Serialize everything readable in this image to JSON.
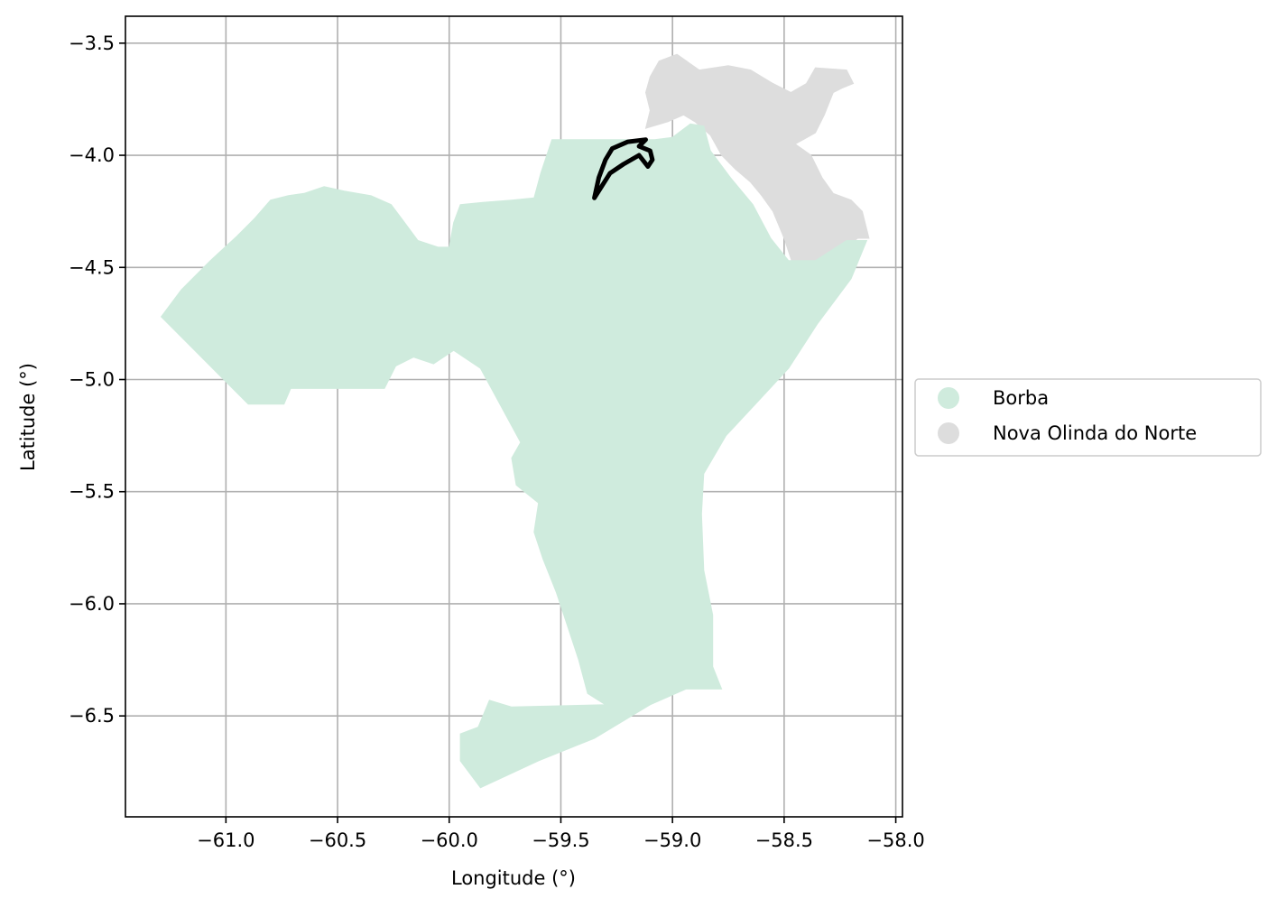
{
  "chart_data": {
    "type": "map",
    "xlabel": "Longitude (°)",
    "ylabel": "Latitude (°)",
    "xlim": [
      -61.45,
      -57.97
    ],
    "ylim": [
      -6.95,
      -3.38
    ],
    "grid": true,
    "legend_placement": "center-right-outside",
    "x_ticks": [
      {
        "value": -61.0,
        "label": "−61.0"
      },
      {
        "value": -60.5,
        "label": "−60.5"
      },
      {
        "value": -60.0,
        "label": "−60.0"
      },
      {
        "value": -59.5,
        "label": "−59.5"
      },
      {
        "value": -59.0,
        "label": "−59.0"
      },
      {
        "value": -58.5,
        "label": "−58.5"
      },
      {
        "value": -58.0,
        "label": "−58.0"
      }
    ],
    "y_ticks": [
      {
        "value": -3.5,
        "label": "−3.5"
      },
      {
        "value": -4.0,
        "label": "−4.0"
      },
      {
        "value": -4.5,
        "label": "−4.5"
      },
      {
        "value": -5.0,
        "label": "−5.0"
      },
      {
        "value": -5.5,
        "label": "−5.5"
      },
      {
        "value": -6.0,
        "label": "−6.0"
      },
      {
        "value": -6.5,
        "label": "−6.5"
      }
    ],
    "regions": [
      {
        "name": "Nova Olinda do Norte",
        "color": "#dddddd",
        "polygon": [
          [
            -59.12,
            -3.88
          ],
          [
            -59.02,
            -3.85
          ],
          [
            -58.95,
            -3.82
          ],
          [
            -58.9,
            -3.85
          ],
          [
            -58.83,
            -3.91
          ],
          [
            -58.78,
            -4.0
          ],
          [
            -58.72,
            -4.06
          ],
          [
            -58.65,
            -4.12
          ],
          [
            -58.6,
            -4.18
          ],
          [
            -58.55,
            -4.25
          ],
          [
            -58.5,
            -4.37
          ],
          [
            -58.46,
            -4.49
          ],
          [
            -58.36,
            -4.48
          ],
          [
            -58.24,
            -4.42
          ],
          [
            -58.17,
            -4.37
          ],
          [
            -58.12,
            -4.37
          ],
          [
            -58.15,
            -4.25
          ],
          [
            -58.2,
            -4.2
          ],
          [
            -58.28,
            -4.17
          ],
          [
            -58.33,
            -4.1
          ],
          [
            -58.38,
            -4.0
          ],
          [
            -58.45,
            -3.95
          ],
          [
            -58.36,
            -3.9
          ],
          [
            -58.32,
            -3.82
          ],
          [
            -58.28,
            -3.72
          ],
          [
            -58.24,
            -3.7
          ],
          [
            -58.19,
            -3.68
          ],
          [
            -58.22,
            -3.62
          ],
          [
            -58.36,
            -3.61
          ],
          [
            -58.4,
            -3.68
          ],
          [
            -58.47,
            -3.72
          ],
          [
            -58.55,
            -3.68
          ],
          [
            -58.65,
            -3.62
          ],
          [
            -58.75,
            -3.6
          ],
          [
            -58.88,
            -3.62
          ],
          [
            -58.98,
            -3.55
          ],
          [
            -59.06,
            -3.58
          ],
          [
            -59.1,
            -3.65
          ],
          [
            -59.12,
            -3.72
          ],
          [
            -59.1,
            -3.8
          ]
        ]
      },
      {
        "name": "Borba",
        "color": "#cfebdd",
        "polygon": [
          [
            -61.29,
            -4.72
          ],
          [
            -61.2,
            -4.6
          ],
          [
            -61.07,
            -4.47
          ],
          [
            -60.95,
            -4.36
          ],
          [
            -60.87,
            -4.28
          ],
          [
            -60.8,
            -4.2
          ],
          [
            -60.72,
            -4.18
          ],
          [
            -60.65,
            -4.17
          ],
          [
            -60.56,
            -4.14
          ],
          [
            -60.47,
            -4.16
          ],
          [
            -60.35,
            -4.18
          ],
          [
            -60.26,
            -4.22
          ],
          [
            -60.2,
            -4.3
          ],
          [
            -60.14,
            -4.38
          ],
          [
            -60.05,
            -4.41
          ],
          [
            -60.0,
            -4.41
          ],
          [
            -59.98,
            -4.3
          ],
          [
            -59.95,
            -4.22
          ],
          [
            -59.85,
            -4.21
          ],
          [
            -59.72,
            -4.2
          ],
          [
            -59.62,
            -4.19
          ],
          [
            -59.59,
            -4.08
          ],
          [
            -59.54,
            -3.93
          ],
          [
            -59.35,
            -3.93
          ],
          [
            -59.2,
            -3.93
          ],
          [
            -59.08,
            -3.93
          ],
          [
            -59.0,
            -3.92
          ],
          [
            -58.92,
            -3.86
          ],
          [
            -58.86,
            -3.87
          ],
          [
            -58.83,
            -3.98
          ],
          [
            -58.74,
            -4.1
          ],
          [
            -58.64,
            -4.22
          ],
          [
            -58.56,
            -4.37
          ],
          [
            -58.48,
            -4.47
          ],
          [
            -58.36,
            -4.47
          ],
          [
            -58.22,
            -4.38
          ],
          [
            -58.13,
            -4.38
          ],
          [
            -58.2,
            -4.55
          ],
          [
            -58.35,
            -4.75
          ],
          [
            -58.48,
            -4.95
          ],
          [
            -58.62,
            -5.1
          ],
          [
            -58.76,
            -5.25
          ],
          [
            -58.86,
            -5.42
          ],
          [
            -58.87,
            -5.6
          ],
          [
            -58.86,
            -5.85
          ],
          [
            -58.82,
            -6.05
          ],
          [
            -58.82,
            -6.28
          ],
          [
            -58.78,
            -6.38
          ],
          [
            -58.94,
            -6.38
          ],
          [
            -59.1,
            -6.45
          ],
          [
            -59.35,
            -6.6
          ],
          [
            -59.6,
            -6.7
          ],
          [
            -59.86,
            -6.82
          ],
          [
            -59.95,
            -6.7
          ],
          [
            -59.95,
            -6.58
          ],
          [
            -59.87,
            -6.55
          ],
          [
            -59.82,
            -6.43
          ],
          [
            -59.72,
            -6.46
          ],
          [
            -59.3,
            -6.45
          ],
          [
            -59.38,
            -6.4
          ],
          [
            -59.42,
            -6.25
          ],
          [
            -59.47,
            -6.1
          ],
          [
            -59.52,
            -5.95
          ],
          [
            -59.58,
            -5.8
          ],
          [
            -59.62,
            -5.68
          ],
          [
            -59.6,
            -5.55
          ],
          [
            -59.7,
            -5.47
          ],
          [
            -59.72,
            -5.35
          ],
          [
            -59.68,
            -5.28
          ],
          [
            -59.86,
            -4.95
          ],
          [
            -59.98,
            -4.87
          ],
          [
            -60.07,
            -4.93
          ],
          [
            -60.16,
            -4.9
          ],
          [
            -60.24,
            -4.94
          ],
          [
            -60.29,
            -5.04
          ],
          [
            -60.5,
            -5.04
          ],
          [
            -60.71,
            -5.04
          ],
          [
            -60.74,
            -5.11
          ],
          [
            -60.9,
            -5.11
          ]
        ]
      }
    ],
    "overlay_path": {
      "color": "#000000",
      "points": [
        [
          -59.35,
          -4.19
        ],
        [
          -59.33,
          -4.1
        ],
        [
          -59.3,
          -4.02
        ],
        [
          -59.27,
          -3.97
        ],
        [
          -59.2,
          -3.94
        ],
        [
          -59.12,
          -3.93
        ],
        [
          -59.15,
          -3.96
        ],
        [
          -59.1,
          -3.98
        ],
        [
          -59.09,
          -4.02
        ],
        [
          -59.11,
          -4.05
        ],
        [
          -59.15,
          -4.0
        ],
        [
          -59.22,
          -4.04
        ],
        [
          -59.28,
          -4.08
        ],
        [
          -59.35,
          -4.19
        ]
      ]
    },
    "legend": [
      {
        "label": "Borba",
        "color": "#cfebdd"
      },
      {
        "label": "Nova Olinda do Norte",
        "color": "#dddddd"
      }
    ]
  }
}
